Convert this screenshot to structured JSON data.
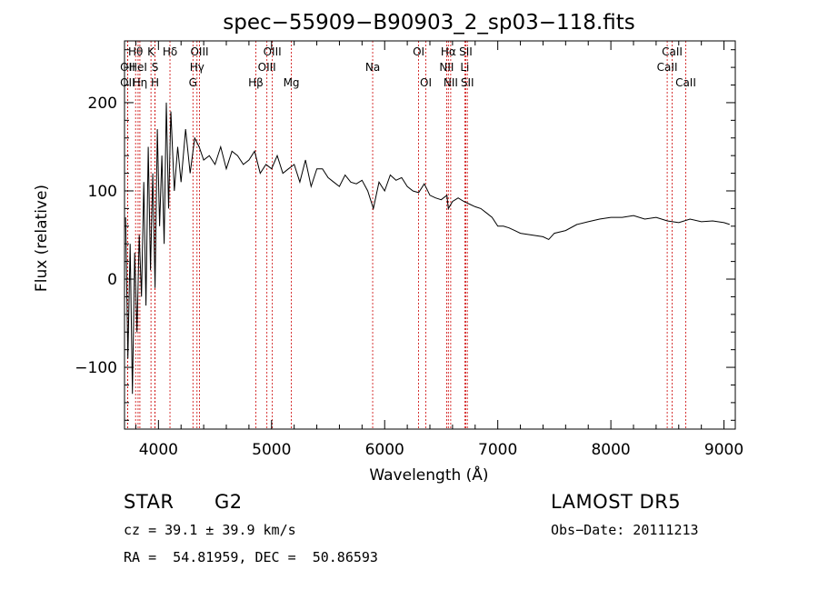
{
  "chart_data": {
    "type": "line",
    "title": "spec−55909−B90903_2_sp03−118.fits",
    "xlabel": "Wavelength (Å)",
    "ylabel": "Flux (relative)",
    "xlim": [
      3700,
      9100
    ],
    "ylim": [
      -170,
      270
    ],
    "x_ticks": [
      4000,
      5000,
      6000,
      7000,
      8000,
      9000
    ],
    "x_tick_labels": [
      "4000",
      "5000",
      "6000",
      "7000",
      "8000",
      "9000"
    ],
    "y_ticks": [
      -100,
      0,
      100,
      200
    ],
    "y_tick_labels": [
      "−100",
      "0",
      "100",
      "200"
    ],
    "grid": false,
    "series": [
      {
        "line_color": "#000000",
        "x": [
          3710,
          3730,
          3750,
          3770,
          3790,
          3810,
          3830,
          3850,
          3870,
          3890,
          3910,
          3930,
          3950,
          3970,
          3990,
          4010,
          4030,
          4050,
          4070,
          4090,
          4110,
          4140,
          4170,
          4200,
          4240,
          4280,
          4320,
          4360,
          4400,
          4450,
          4500,
          4550,
          4600,
          4650,
          4700,
          4750,
          4800,
          4850,
          4900,
          4950,
          5000,
          5050,
          5100,
          5150,
          5200,
          5250,
          5300,
          5350,
          5400,
          5450,
          5500,
          5550,
          5600,
          5650,
          5700,
          5750,
          5800,
          5850,
          5900,
          5950,
          6000,
          6050,
          6100,
          6150,
          6200,
          6250,
          6300,
          6350,
          6400,
          6450,
          6500,
          6550,
          6563,
          6600,
          6650,
          6700,
          6750,
          6800,
          6850,
          6900,
          6950,
          7000,
          7050,
          7100,
          7150,
          7200,
          7300,
          7400,
          7450,
          7500,
          7600,
          7700,
          7800,
          7900,
          8000,
          8100,
          8200,
          8300,
          8400,
          8500,
          8600,
          8700,
          8800,
          8900,
          9000,
          9050
        ],
        "y": [
          70,
          -90,
          40,
          -130,
          30,
          -60,
          50,
          -20,
          110,
          -30,
          150,
          10,
          120,
          -10,
          170,
          60,
          140,
          40,
          200,
          80,
          190,
          100,
          150,
          110,
          170,
          120,
          160,
          150,
          135,
          140,
          130,
          150,
          125,
          145,
          140,
          130,
          135,
          145,
          120,
          130,
          125,
          140,
          120,
          125,
          130,
          110,
          135,
          105,
          125,
          125,
          115,
          110,
          105,
          118,
          110,
          108,
          112,
          100,
          80,
          110,
          100,
          118,
          112,
          115,
          105,
          100,
          98,
          108,
          95,
          92,
          90,
          95,
          80,
          88,
          92,
          88,
          85,
          82,
          80,
          75,
          70,
          60,
          60,
          58,
          55,
          52,
          50,
          48,
          45,
          52,
          55,
          62,
          65,
          68,
          70,
          70,
          72,
          68,
          70,
          66,
          64,
          68,
          65,
          66,
          64,
          62
        ]
      }
    ],
    "lines": [
      {
        "name": "Hθ",
        "x": 3798,
        "row": 1
      },
      {
        "name": "OII",
        "x": 3727,
        "row": 2
      },
      {
        "name": "OII",
        "x": 3727,
        "row": 3
      },
      {
        "name": "HeI",
        "x": 3820,
        "row": 2
      },
      {
        "name": "Hη",
        "x": 3836,
        "row": 3
      },
      {
        "name": "K",
        "x": 3934,
        "row": 1
      },
      {
        "name": "S",
        "x": 3970,
        "row": 2
      },
      {
        "name": "H",
        "x": 3969,
        "row": 3
      },
      {
        "name": "Hδ",
        "x": 4102,
        "row": 1
      },
      {
        "name": "OIII",
        "x": 4363,
        "row": 1
      },
      {
        "name": "Hγ",
        "x": 4341,
        "row": 2
      },
      {
        "name": "G",
        "x": 4305,
        "row": 3
      },
      {
        "name": "Hβ",
        "x": 4861,
        "row": 3
      },
      {
        "name": "OIII",
        "x": 4959,
        "row": 2
      },
      {
        "name": "OIII",
        "x": 5007,
        "row": 1
      },
      {
        "name": "Mg",
        "x": 5175,
        "row": 3
      },
      {
        "name": "Na",
        "x": 5894,
        "row": 2
      },
      {
        "name": "OI",
        "x": 6300,
        "row": 1
      },
      {
        "name": "OI",
        "x": 6364,
        "row": 3
      },
      {
        "name": "NII",
        "x": 6548,
        "row": 2
      },
      {
        "name": "Hα",
        "x": 6563,
        "row": 1
      },
      {
        "name": "NII",
        "x": 6584,
        "row": 3
      },
      {
        "name": "Li",
        "x": 6708,
        "row": 2
      },
      {
        "name": "SII",
        "x": 6717,
        "row": 1
      },
      {
        "name": "SII",
        "x": 6731,
        "row": 3
      },
      {
        "name": "CaII",
        "x": 8498,
        "row": 2
      },
      {
        "name": "CaII",
        "x": 8542,
        "row": 1
      },
      {
        "name": "CaII",
        "x": 8662,
        "row": 3
      }
    ],
    "colors": {
      "spectrum": "#000000",
      "line_markers": "#cc0000",
      "axes": "#000000"
    }
  },
  "info": {
    "class": "STAR",
    "subclass": "G2",
    "survey": "LAMOST DR5",
    "redshift": "cz = 39.1 ± 39.9 km/s",
    "obs_date": "Obs−Date: 20111213",
    "coords": "RA =  54.81959, DEC =  50.86593"
  }
}
